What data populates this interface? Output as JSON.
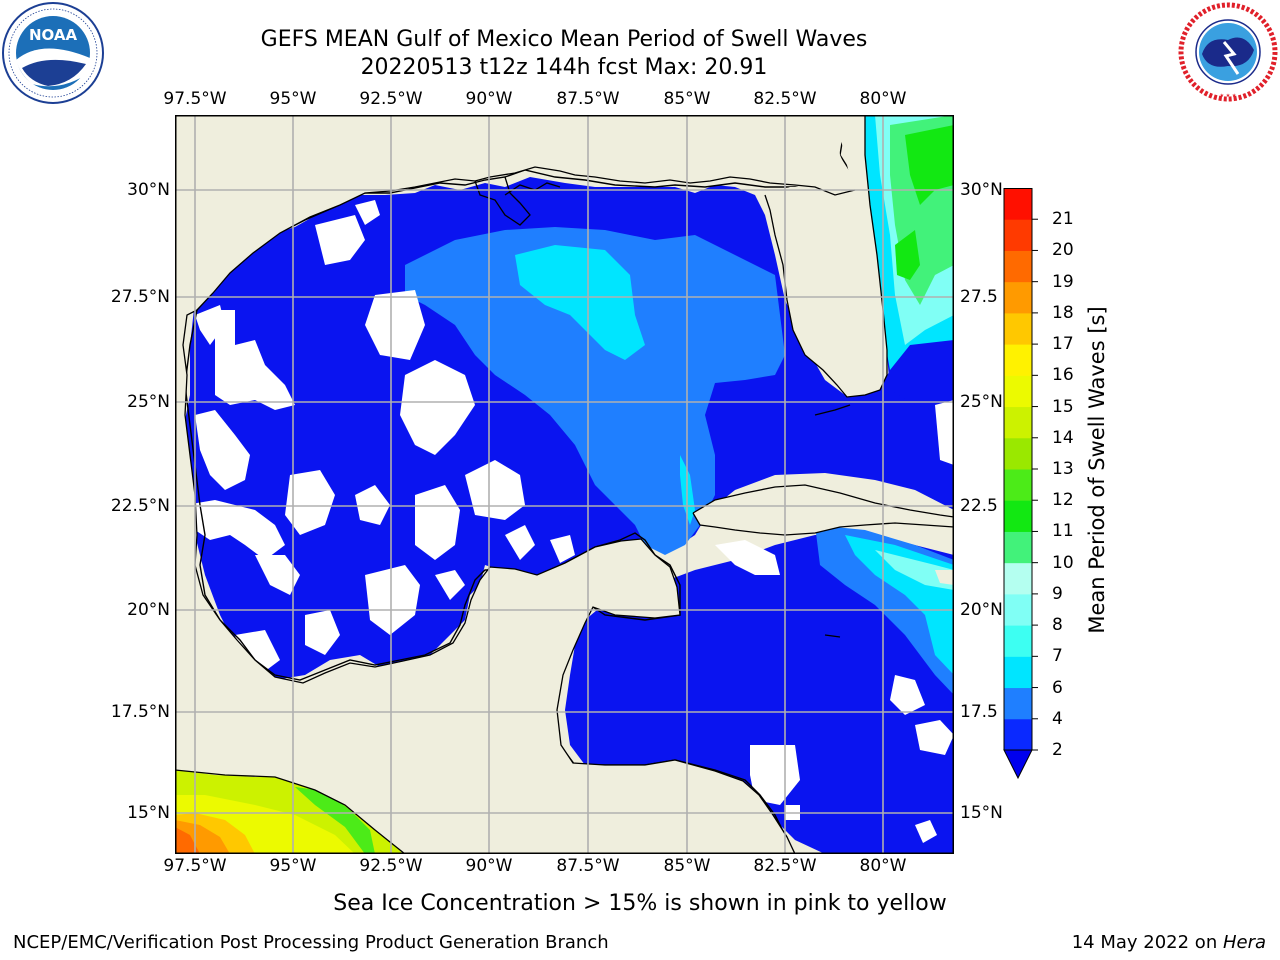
{
  "title": {
    "line1": "GEFS MEAN Gulf of Mexico Mean Period of Swell Waves",
    "line2": "20220513 t12z 144h fcst   Max: 20.91"
  },
  "logos": {
    "noaa": {
      "icon": "noaa-logo",
      "text": "NOAA",
      "ring_text": "NATIONAL OCEANIC AND ATMOSPHERIC ADMINISTRATION · U.S. DEPARTMENT OF COMMERCE"
    },
    "nws": {
      "icon": "nws-logo",
      "ring_text": "NATIONAL WEATHER SERVICE"
    }
  },
  "map": {
    "lon_ticks": [
      "97.5°W",
      "95°W",
      "92.5°W",
      "90°W",
      "87.5°W",
      "85°W",
      "82.5°W",
      "80°W"
    ],
    "lat_ticks_left": [
      "30°N",
      "27.5°N",
      "25°N",
      "22.5°N",
      "20°N",
      "17.5°N",
      "15°N"
    ],
    "lat_ticks_right": [
      "30°N",
      "27.5",
      "25°N",
      "22.5",
      "20°N",
      "17.5",
      "15°N"
    ],
    "land_color": "#efeedd",
    "grid_color": "#b0b0b0"
  },
  "colorbar": {
    "label": "Mean Period of Swell Waves [s]",
    "ticks": [
      "2",
      "4",
      "6",
      "7",
      "8",
      "9",
      "10",
      "11",
      "12",
      "13",
      "14",
      "15",
      "16",
      "17",
      "18",
      "19",
      "20",
      "21"
    ],
    "colors": [
      "#0a29ff",
      "#1f7fff",
      "#00e5ff",
      "#3dfff2",
      "#80fff5",
      "#b4fff0",
      "#42f27a",
      "#12e812",
      "#4ceb18",
      "#9ae800",
      "#ccf200",
      "#ecfa00",
      "#fff200",
      "#ffc800",
      "#ff9a00",
      "#ff6a00",
      "#ff3a00",
      "#ff1000"
    ],
    "extend_color": "#0000ee"
  },
  "note": "Sea Ice Concentration > 15% is shown in pink to yellow",
  "footer": {
    "left": "NCEP/EMC/Verification Post Processing Product Generation Branch",
    "right_date": "14 May 2022 on ",
    "right_host": "Hera"
  }
}
